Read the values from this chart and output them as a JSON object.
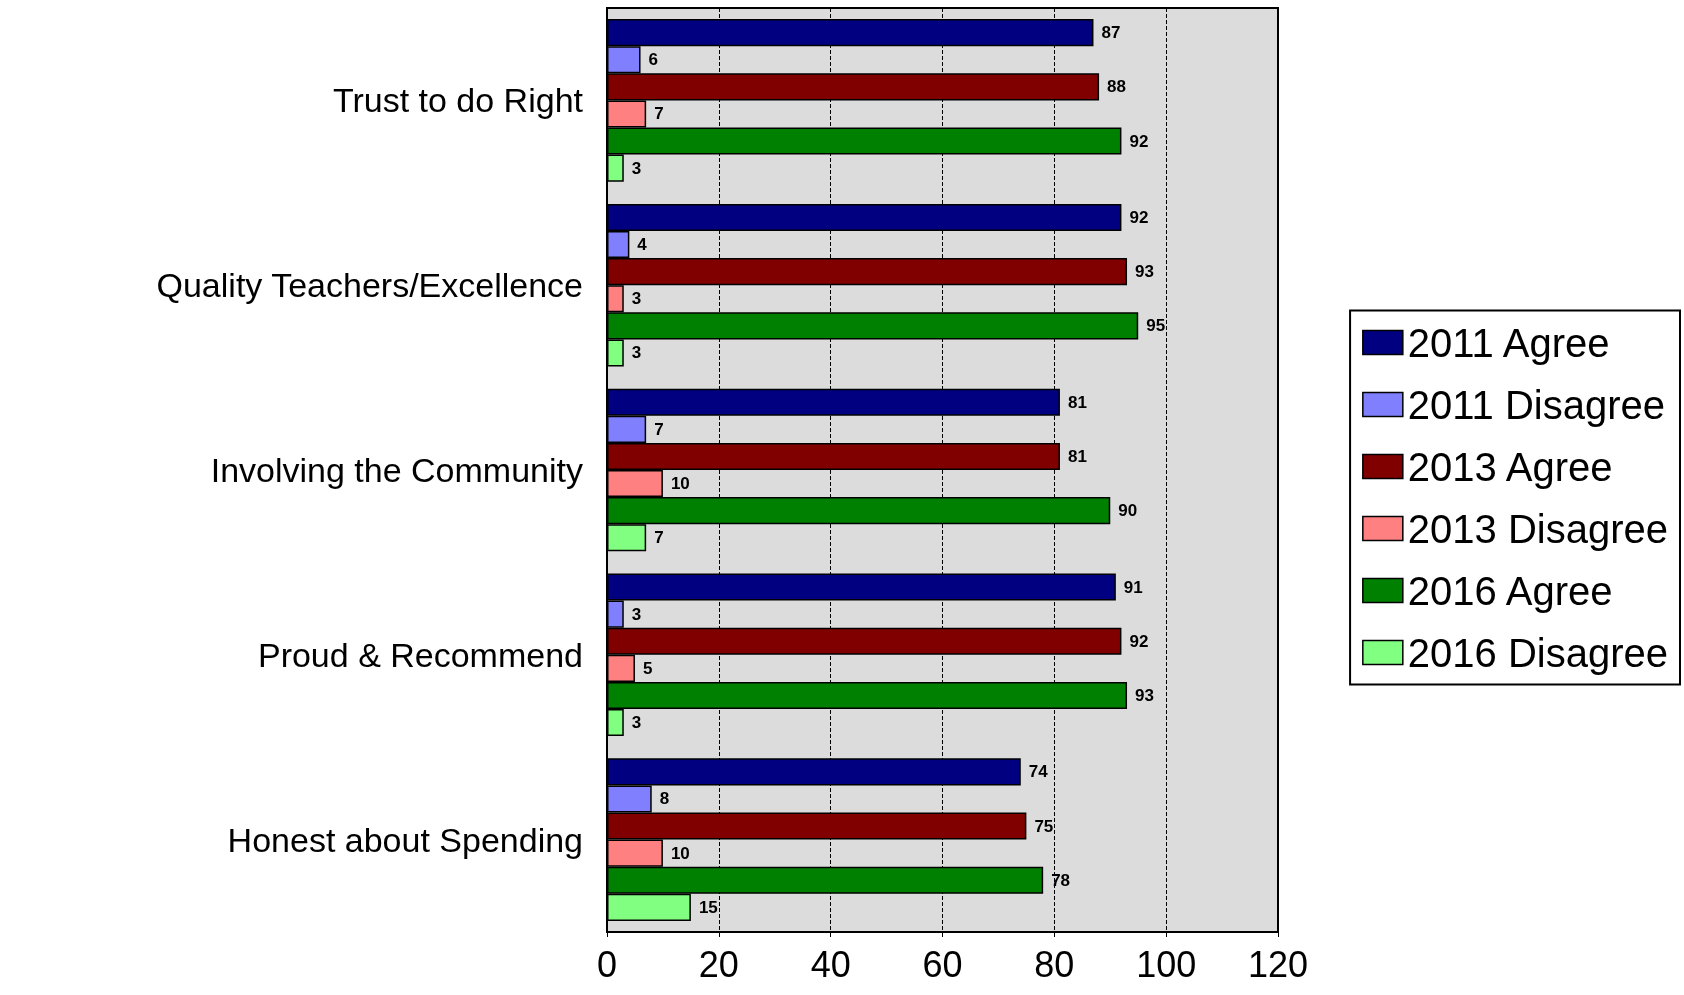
{
  "chart_data": {
    "type": "bar",
    "orientation": "horizontal",
    "categories": [
      "Trust to do Right",
      "Quality Teachers/Excellence",
      "Involving the Community",
      "Proud & Recommend",
      "Honest about Spending"
    ],
    "series": [
      {
        "name": "2011 Agree",
        "color": "#000080",
        "values": [
          87,
          92,
          81,
          91,
          74
        ]
      },
      {
        "name": "2011 Disagree",
        "color": "#8080ff",
        "values": [
          6,
          4,
          7,
          3,
          8
        ]
      },
      {
        "name": "2013 Agree",
        "color": "#800000",
        "values": [
          88,
          93,
          81,
          92,
          75
        ]
      },
      {
        "name": "2013 Disagree",
        "color": "#ff8080",
        "values": [
          7,
          3,
          10,
          5,
          10
        ]
      },
      {
        "name": "2016 Agree",
        "color": "#008000",
        "values": [
          92,
          95,
          90,
          93,
          78
        ]
      },
      {
        "name": "2016 Disagree",
        "color": "#80ff80",
        "values": [
          3,
          3,
          7,
          3,
          15
        ]
      }
    ],
    "xlim": [
      0,
      120
    ],
    "xticks": [
      0,
      20,
      40,
      60,
      80,
      100,
      120
    ],
    "grid": "x",
    "legend": "right",
    "data_labels": true
  }
}
